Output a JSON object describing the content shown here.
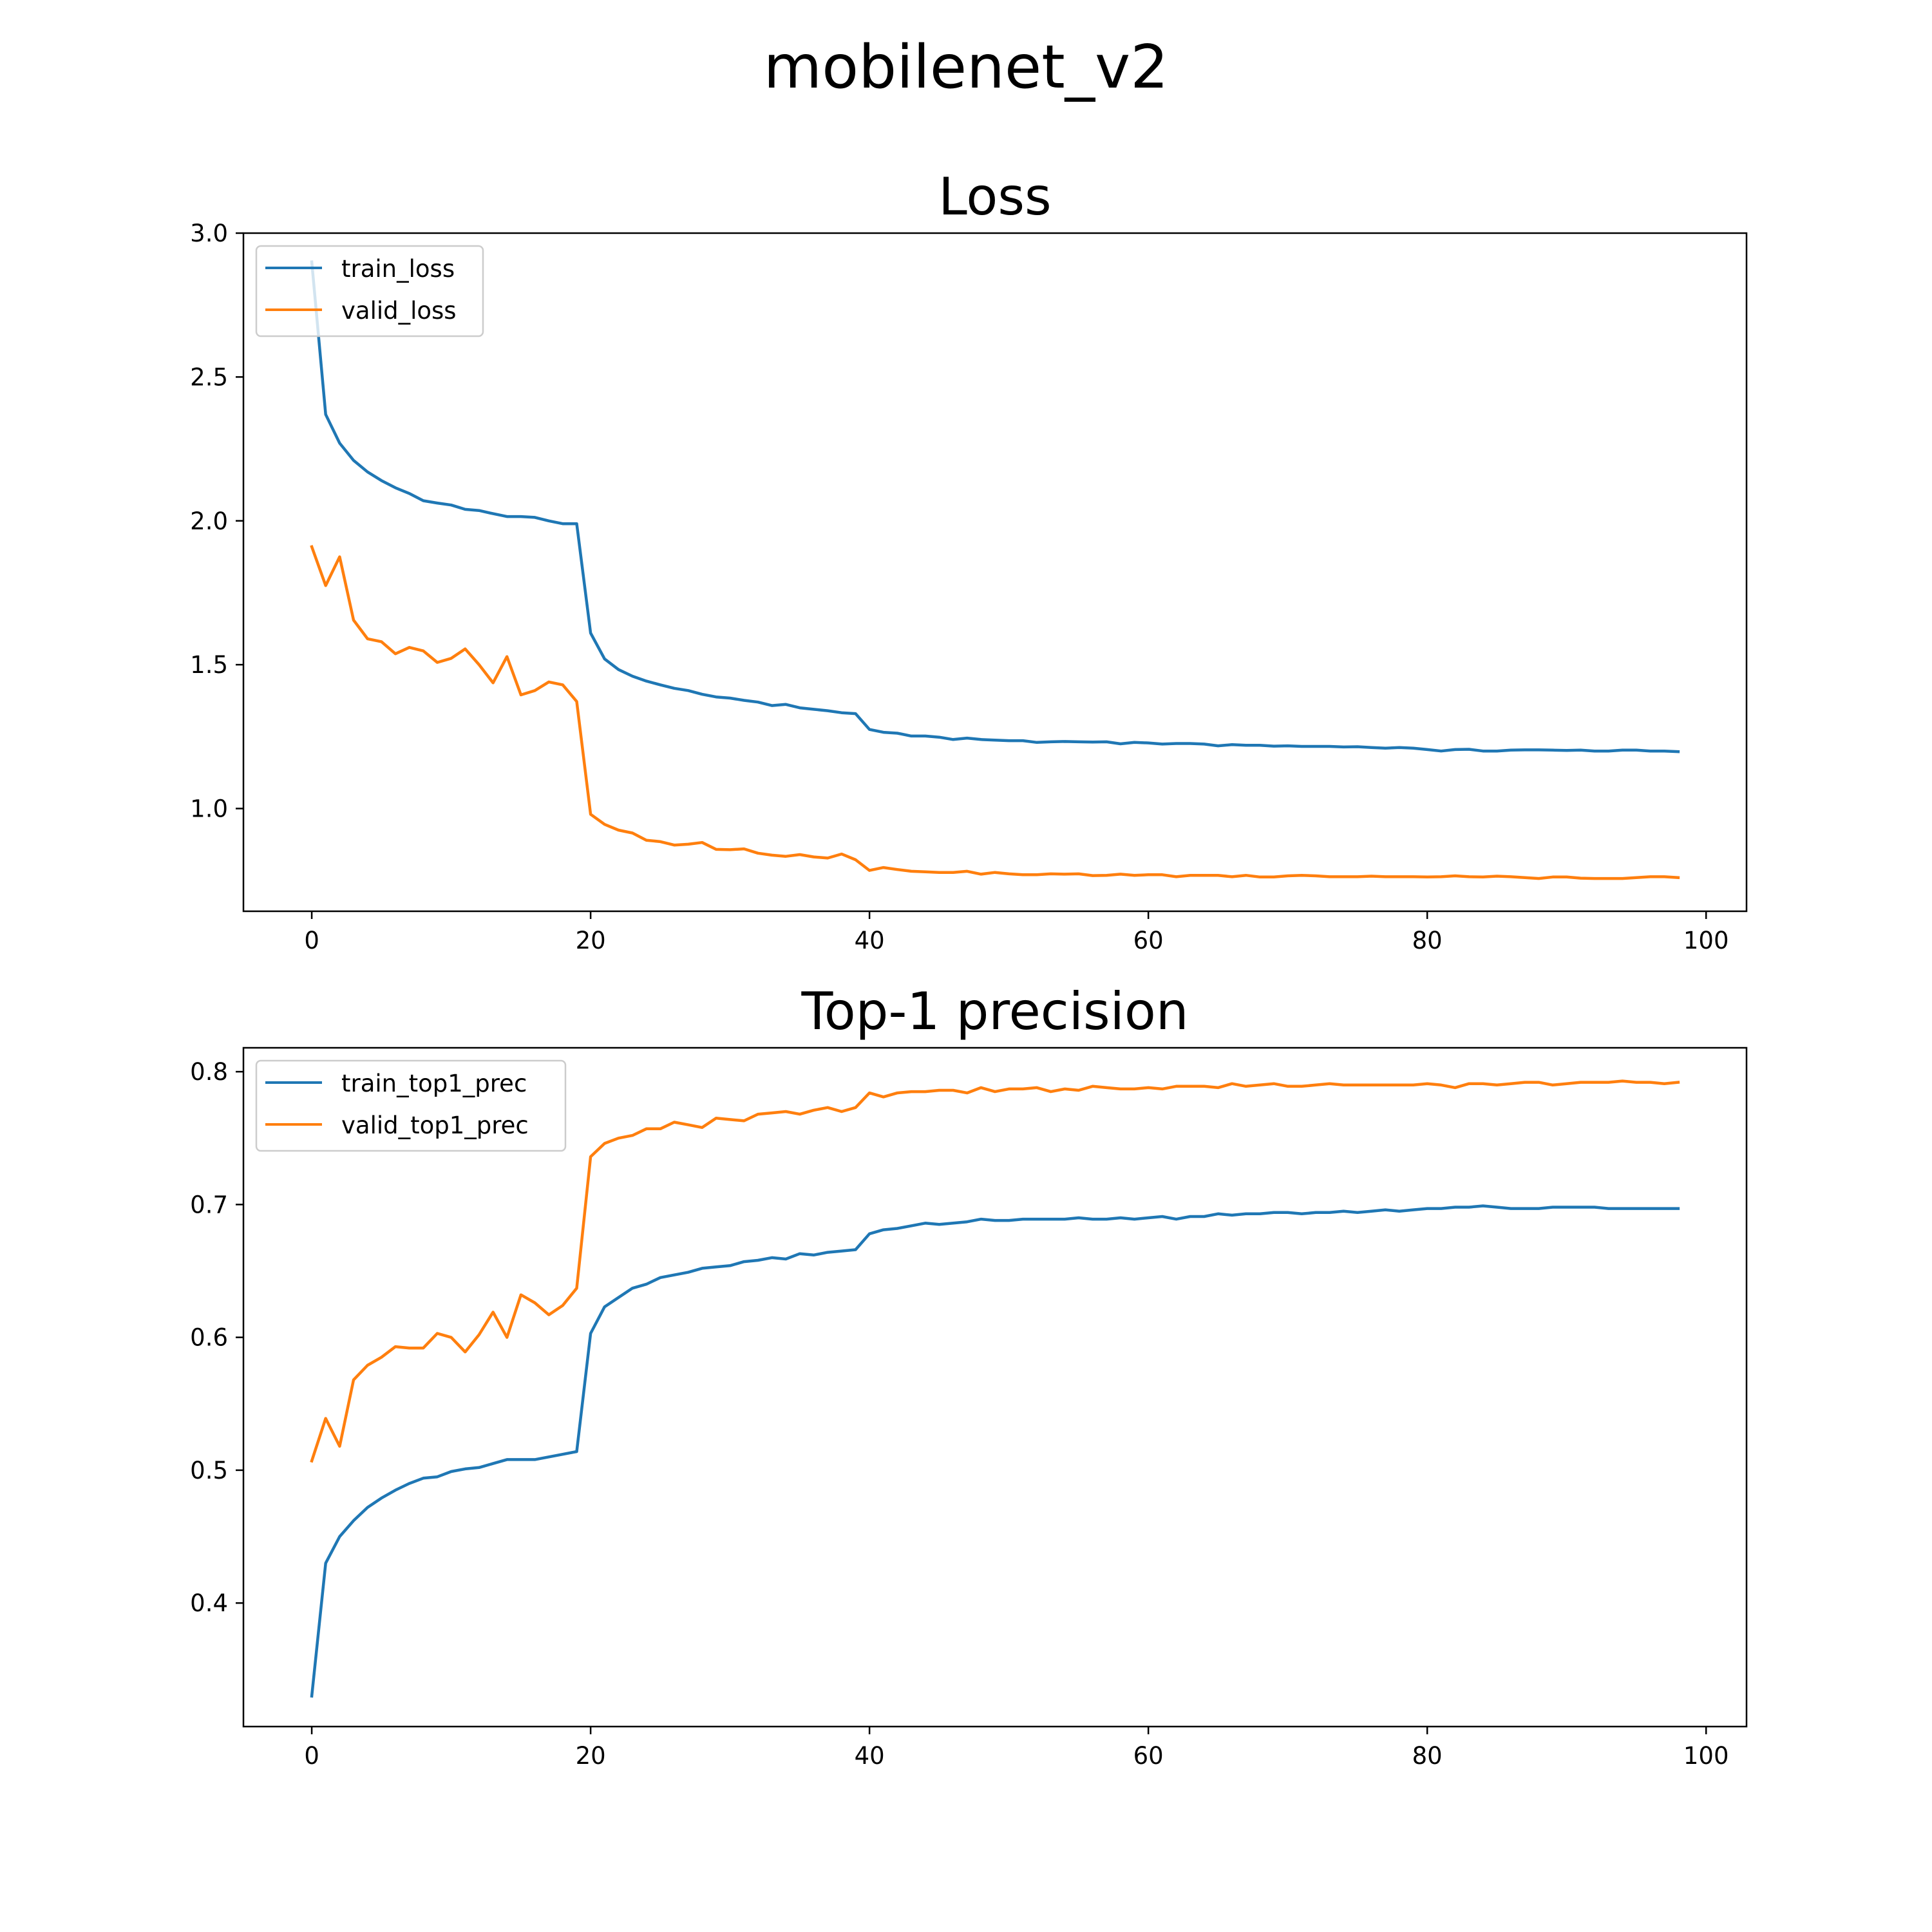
{
  "figure": {
    "suptitle": "mobilenet_v2"
  },
  "colors": {
    "train": "#1f77b4",
    "valid": "#ff7f0e"
  },
  "chart_data": [
    {
      "type": "line",
      "title": "Loss",
      "xlabel": "",
      "ylabel": "",
      "xlim": [
        -4.9,
        102.9
      ],
      "ylim": [
        0.643,
        3.0
      ],
      "xticks": [
        0,
        20,
        40,
        60,
        80,
        100
      ],
      "xtick_labels": [
        "0",
        "20",
        "40",
        "60",
        "80",
        "100"
      ],
      "yticks": [
        1.0,
        1.5,
        2.0,
        2.5,
        3.0
      ],
      "ytick_labels": [
        "1.0",
        "1.5",
        "2.0",
        "2.5",
        "3.0"
      ],
      "grid": false,
      "legend": "upper left",
      "x": [
        0,
        1,
        2,
        3,
        4,
        5,
        6,
        7,
        8,
        9,
        10,
        11,
        12,
        13,
        14,
        15,
        16,
        17,
        18,
        19,
        20,
        21,
        22,
        23,
        24,
        25,
        26,
        27,
        28,
        29,
        30,
        31,
        32,
        33,
        34,
        35,
        36,
        37,
        38,
        39,
        40,
        41,
        42,
        43,
        44,
        45,
        46,
        47,
        48,
        49,
        50,
        51,
        52,
        53,
        54,
        55,
        56,
        57,
        58,
        59,
        60,
        61,
        62,
        63,
        64,
        65,
        66,
        67,
        68,
        69,
        70,
        71,
        72,
        73,
        74,
        75,
        76,
        77,
        78,
        79,
        80,
        81,
        82,
        83,
        84,
        85,
        86,
        87,
        88,
        89,
        90,
        91,
        92,
        93,
        94,
        95,
        96,
        97,
        98
      ],
      "series": [
        {
          "name": "train_loss",
          "color": "#1f77b4",
          "values": [
            2.9,
            2.37,
            2.27,
            2.21,
            2.17,
            2.14,
            2.115,
            2.095,
            2.07,
            2.062,
            2.055,
            2.04,
            2.036,
            2.025,
            2.015,
            2.015,
            2.012,
            2,
            1.99,
            1.99,
            1.61,
            1.52,
            1.483,
            1.46,
            1.443,
            1.43,
            1.418,
            1.41,
            1.397,
            1.388,
            1.384,
            1.376,
            1.37,
            1.358,
            1.362,
            1.35,
            1.345,
            1.34,
            1.333,
            1.33,
            1.275,
            1.265,
            1.262,
            1.252,
            1.252,
            1.248,
            1.24,
            1.245,
            1.24,
            1.238,
            1.236,
            1.236,
            1.23,
            1.232,
            1.233,
            1.232,
            1.231,
            1.232,
            1.225,
            1.23,
            1.228,
            1.224,
            1.226,
            1.226,
            1.224,
            1.218,
            1.222,
            1.22,
            1.22,
            1.217,
            1.218,
            1.216,
            1.216,
            1.216,
            1.214,
            1.215,
            1.212,
            1.21,
            1.212,
            1.21,
            1.205,
            1.2,
            1.205,
            1.206,
            1.2,
            1.2,
            1.203,
            1.204,
            1.204,
            1.203,
            1.202,
            1.203,
            1.2,
            1.2,
            1.203,
            1.203,
            1.2,
            1.2,
            1.198
          ]
        },
        {
          "name": "valid_loss",
          "color": "#ff7f0e",
          "values": [
            1.91,
            1.775,
            1.875,
            1.655,
            1.59,
            1.58,
            1.538,
            1.56,
            1.548,
            1.508,
            1.522,
            1.555,
            1.5,
            1.437,
            1.528,
            1.395,
            1.41,
            1.44,
            1.43,
            1.372,
            0.98,
            0.945,
            0.925,
            0.915,
            0.89,
            0.885,
            0.873,
            0.876,
            0.882,
            0.858,
            0.857,
            0.86,
            0.845,
            0.838,
            0.834,
            0.84,
            0.832,
            0.828,
            0.842,
            0.822,
            0.785,
            0.795,
            0.788,
            0.782,
            0.78,
            0.778,
            0.778,
            0.782,
            0.772,
            0.778,
            0.773,
            0.77,
            0.77,
            0.773,
            0.772,
            0.773,
            0.767,
            0.768,
            0.772,
            0.768,
            0.77,
            0.77,
            0.763,
            0.768,
            0.768,
            0.768,
            0.763,
            0.768,
            0.762,
            0.762,
            0.766,
            0.768,
            0.766,
            0.763,
            0.763,
            0.763,
            0.765,
            0.763,
            0.763,
            0.763,
            0.762,
            0.763,
            0.766,
            0.763,
            0.762,
            0.765,
            0.763,
            0.76,
            0.757,
            0.762,
            0.762,
            0.758,
            0.757,
            0.757,
            0.757,
            0.76,
            0.763,
            0.763,
            0.76
          ]
        }
      ]
    },
    {
      "type": "line",
      "title": "Top-1 precision",
      "xlabel": "",
      "ylabel": "",
      "xlim": [
        -4.9,
        102.9
      ],
      "ylim": [
        0.307,
        0.818
      ],
      "xticks": [
        0,
        20,
        40,
        60,
        80,
        100
      ],
      "xtick_labels": [
        "0",
        "20",
        "40",
        "60",
        "80",
        "100"
      ],
      "yticks": [
        0.4,
        0.5,
        0.6,
        0.7,
        0.8
      ],
      "ytick_labels": [
        "0.4",
        "0.5",
        "0.6",
        "0.7",
        "0.8"
      ],
      "grid": false,
      "legend": "upper left",
      "x": [
        0,
        1,
        2,
        3,
        4,
        5,
        6,
        7,
        8,
        9,
        10,
        11,
        12,
        13,
        14,
        15,
        16,
        17,
        18,
        19,
        20,
        21,
        22,
        23,
        24,
        25,
        26,
        27,
        28,
        29,
        30,
        31,
        32,
        33,
        34,
        35,
        36,
        37,
        38,
        39,
        40,
        41,
        42,
        43,
        44,
        45,
        46,
        47,
        48,
        49,
        50,
        51,
        52,
        53,
        54,
        55,
        56,
        57,
        58,
        59,
        60,
        61,
        62,
        63,
        64,
        65,
        66,
        67,
        68,
        69,
        70,
        71,
        72,
        73,
        74,
        75,
        76,
        77,
        78,
        79,
        80,
        81,
        82,
        83,
        84,
        85,
        86,
        87,
        88,
        89,
        90,
        91,
        92,
        93,
        94,
        95,
        96,
        97,
        98
      ],
      "series": [
        {
          "name": "train_top1_prec",
          "color": "#1f77b4",
          "values": [
            0.33,
            0.43,
            0.45,
            0.462,
            0.472,
            0.479,
            0.485,
            0.49,
            0.494,
            0.495,
            0.499,
            0.501,
            0.502,
            0.505,
            0.508,
            0.508,
            0.508,
            0.51,
            0.512,
            0.514,
            0.603,
            0.623,
            0.63,
            0.637,
            0.64,
            0.645,
            0.647,
            0.649,
            0.652,
            0.653,
            0.654,
            0.657,
            0.658,
            0.66,
            0.659,
            0.663,
            0.662,
            0.664,
            0.665,
            0.666,
            0.678,
            0.681,
            0.682,
            0.684,
            0.686,
            0.685,
            0.686,
            0.687,
            0.689,
            0.688,
            0.688,
            0.689,
            0.689,
            0.689,
            0.689,
            0.69,
            0.689,
            0.689,
            0.69,
            0.689,
            0.69,
            0.691,
            0.689,
            0.691,
            0.691,
            0.693,
            0.692,
            0.693,
            0.693,
            0.694,
            0.694,
            0.693,
            0.694,
            0.694,
            0.695,
            0.694,
            0.695,
            0.696,
            0.695,
            0.696,
            0.697,
            0.697,
            0.698,
            0.698,
            0.699,
            0.698,
            0.697,
            0.697,
            0.697,
            0.698,
            0.698,
            0.698,
            0.698,
            0.697,
            0.697,
            0.697,
            0.697,
            0.697,
            0.697
          ]
        },
        {
          "name": "valid_top1_prec",
          "color": "#ff7f0e",
          "values": [
            0.507,
            0.539,
            0.518,
            0.568,
            0.579,
            0.585,
            0.593,
            0.592,
            0.592,
            0.603,
            0.6,
            0.589,
            0.602,
            0.619,
            0.6,
            0.632,
            0.626,
            0.617,
            0.624,
            0.637,
            0.736,
            0.746,
            0.75,
            0.752,
            0.757,
            0.757,
            0.762,
            0.76,
            0.758,
            0.765,
            0.764,
            0.763,
            0.768,
            0.769,
            0.77,
            0.768,
            0.771,
            0.773,
            0.77,
            0.773,
            0.784,
            0.781,
            0.784,
            0.785,
            0.785,
            0.786,
            0.786,
            0.784,
            0.788,
            0.785,
            0.787,
            0.787,
            0.788,
            0.785,
            0.787,
            0.786,
            0.789,
            0.788,
            0.787,
            0.787,
            0.788,
            0.787,
            0.789,
            0.789,
            0.789,
            0.788,
            0.791,
            0.789,
            0.79,
            0.791,
            0.789,
            0.789,
            0.79,
            0.791,
            0.79,
            0.79,
            0.79,
            0.79,
            0.79,
            0.79,
            0.791,
            0.79,
            0.788,
            0.791,
            0.791,
            0.79,
            0.791,
            0.792,
            0.792,
            0.79,
            0.791,
            0.792,
            0.792,
            0.792,
            0.793,
            0.792,
            0.792,
            0.791,
            0.792
          ]
        }
      ]
    }
  ]
}
